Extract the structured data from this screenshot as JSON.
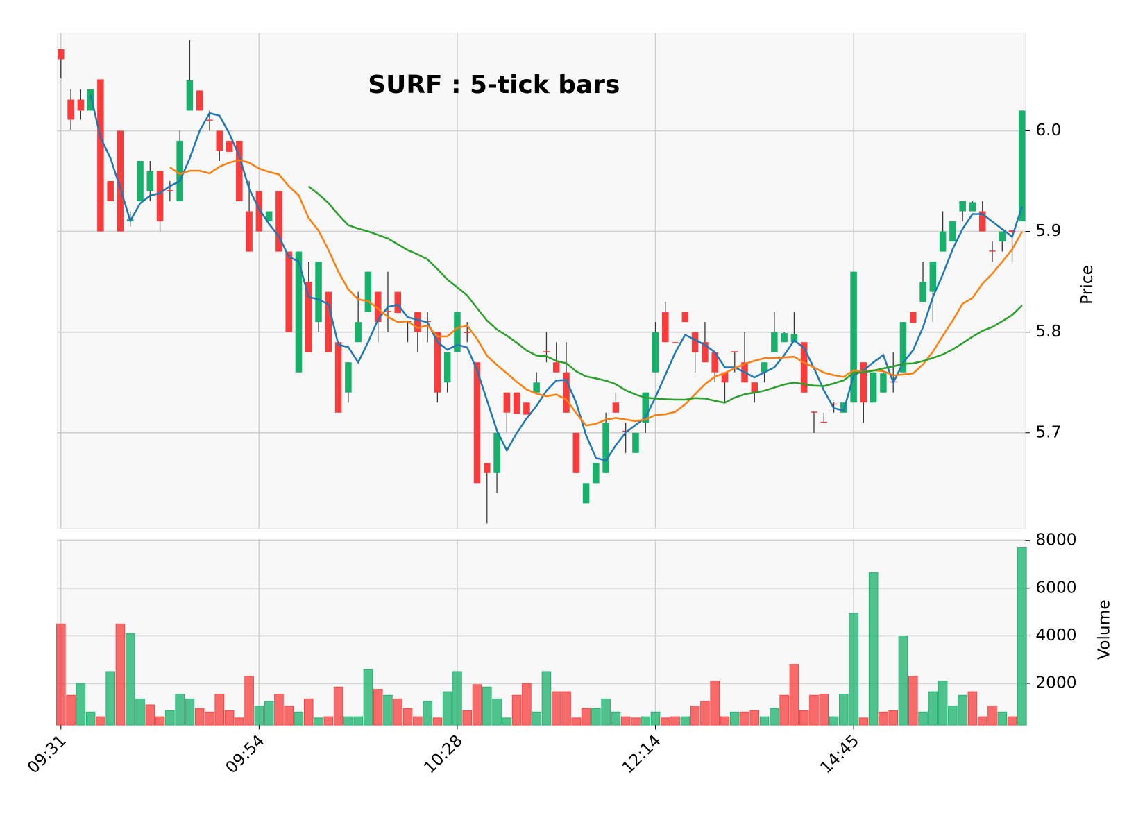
{
  "chart_data": {
    "type": "candlestick",
    "title": "SURF : 5-tick bars",
    "categories": [
      "09:31",
      null,
      null,
      null,
      null,
      null,
      null,
      null,
      null,
      null,
      null,
      null,
      null,
      null,
      null,
      null,
      null,
      null,
      null,
      null,
      "09:54",
      null,
      null,
      null,
      null,
      null,
      null,
      null,
      null,
      null,
      null,
      null,
      null,
      null,
      null,
      null,
      null,
      null,
      null,
      null,
      "10:28",
      null,
      null,
      null,
      null,
      null,
      null,
      null,
      null,
      null,
      null,
      null,
      null,
      null,
      null,
      null,
      null,
      null,
      null,
      null,
      "12:14",
      null,
      null,
      null,
      null,
      null,
      null,
      null,
      null,
      null,
      null,
      null,
      null,
      null,
      null,
      null,
      null,
      null,
      null,
      null,
      "14:45",
      null,
      null,
      null,
      null,
      null,
      null,
      null,
      null,
      null,
      null,
      null,
      null,
      null,
      null,
      null,
      null,
      null
    ],
    "open": [
      6.081,
      6.031,
      6.031,
      6.02,
      6.051,
      5.95,
      6.0,
      5.91,
      5.93,
      5.94,
      5.96,
      5.941,
      5.93,
      6.02,
      6.04,
      6.011,
      6.0,
      5.99,
      5.99,
      5.92,
      5.94,
      5.91,
      5.94,
      5.88,
      5.76,
      5.85,
      5.81,
      5.84,
      5.79,
      5.74,
      5.79,
      5.82,
      5.84,
      5.821,
      5.84,
      5.811,
      5.82,
      5.811,
      5.8,
      5.75,
      5.78,
      5.8,
      5.77,
      5.67,
      5.66,
      5.74,
      5.74,
      5.73,
      5.74,
      5.781,
      5.77,
      5.76,
      5.7,
      5.63,
      5.65,
      5.66,
      5.73,
      5.702,
      5.68,
      5.71,
      5.76,
      5.82,
      5.79,
      5.82,
      5.8,
      5.79,
      5.78,
      5.76,
      5.781,
      5.77,
      5.75,
      5.76,
      5.78,
      5.79,
      5.79,
      5.79,
      5.721,
      5.711,
      5.729,
      5.72,
      5.73,
      5.77,
      5.73,
      5.74,
      5.751,
      5.76,
      5.82,
      5.83,
      5.84,
      5.88,
      5.89,
      5.92,
      5.92,
      5.92,
      5.881,
      5.89,
      5.901,
      5.91
    ],
    "high": [
      6.081,
      6.041,
      6.041,
      6.041,
      6.051,
      5.95,
      6.0,
      5.92,
      5.97,
      5.97,
      5.96,
      5.95,
      6.0,
      6.09,
      6.04,
      6.02,
      6.0,
      5.99,
      5.99,
      5.95,
      5.94,
      5.92,
      5.94,
      5.88,
      5.88,
      5.87,
      5.87,
      5.84,
      5.79,
      5.77,
      5.84,
      5.86,
      5.84,
      5.86,
      5.84,
      5.811,
      5.82,
      5.82,
      5.8,
      5.78,
      5.82,
      5.81,
      5.77,
      5.67,
      5.7,
      5.74,
      5.74,
      5.73,
      5.76,
      5.8,
      5.79,
      5.79,
      5.7,
      5.65,
      5.67,
      5.72,
      5.74,
      5.71,
      5.7,
      5.74,
      5.81,
      5.83,
      5.79,
      5.82,
      5.8,
      5.81,
      5.78,
      5.76,
      5.78,
      5.8,
      5.75,
      5.77,
      5.82,
      5.8,
      5.82,
      5.79,
      5.721,
      5.72,
      5.73,
      5.73,
      5.86,
      5.77,
      5.76,
      5.76,
      5.78,
      5.81,
      5.82,
      5.87,
      5.87,
      5.92,
      5.91,
      5.93,
      5.93,
      5.93,
      5.89,
      5.9,
      5.901,
      6.02
    ],
    "low": [
      6.052,
      6.001,
      6.011,
      6.02,
      5.9,
      5.93,
      5.9,
      5.905,
      5.93,
      5.93,
      5.9,
      5.93,
      5.93,
      6.02,
      6.02,
      6.0,
      5.97,
      5.979,
      5.93,
      5.88,
      5.9,
      5.91,
      5.88,
      5.8,
      5.76,
      5.78,
      5.8,
      5.78,
      5.72,
      5.73,
      5.79,
      5.82,
      5.79,
      5.8,
      5.819,
      5.79,
      5.78,
      5.79,
      5.73,
      5.74,
      5.78,
      5.79,
      5.65,
      5.61,
      5.64,
      5.7,
      5.719,
      5.718,
      5.74,
      5.77,
      5.76,
      5.72,
      5.66,
      5.63,
      5.65,
      5.66,
      5.72,
      5.68,
      5.68,
      5.7,
      5.76,
      5.79,
      5.789,
      5.81,
      5.76,
      5.77,
      5.75,
      5.73,
      5.76,
      5.75,
      5.73,
      5.75,
      5.78,
      5.79,
      5.79,
      5.74,
      5.7,
      5.71,
      5.72,
      5.72,
      5.73,
      5.71,
      5.73,
      5.74,
      5.74,
      5.76,
      5.809,
      5.83,
      5.81,
      5.88,
      5.89,
      5.91,
      5.92,
      5.9,
      5.87,
      5.88,
      5.87,
      5.91
    ],
    "close": [
      6.071,
      6.011,
      6.02,
      6.041,
      5.9,
      5.93,
      5.9,
      5.912,
      5.97,
      5.96,
      5.91,
      5.94,
      5.99,
      6.05,
      6.02,
      6.01,
      5.98,
      5.979,
      5.93,
      5.88,
      5.9,
      5.92,
      5.88,
      5.8,
      5.88,
      5.78,
      5.87,
      5.78,
      5.72,
      5.77,
      5.81,
      5.86,
      5.81,
      5.82,
      5.819,
      5.81,
      5.8,
      5.81,
      5.74,
      5.78,
      5.82,
      5.799,
      5.65,
      5.66,
      5.7,
      5.72,
      5.719,
      5.718,
      5.75,
      5.78,
      5.76,
      5.72,
      5.66,
      5.65,
      5.67,
      5.71,
      5.72,
      5.701,
      5.7,
      5.74,
      5.8,
      5.79,
      5.789,
      5.81,
      5.78,
      5.77,
      5.76,
      5.75,
      5.78,
      5.75,
      5.74,
      5.77,
      5.8,
      5.799,
      5.798,
      5.74,
      5.72,
      5.71,
      5.728,
      5.73,
      5.86,
      5.73,
      5.76,
      5.759,
      5.75,
      5.81,
      5.809,
      5.85,
      5.87,
      5.9,
      5.91,
      5.93,
      5.929,
      5.9,
      5.88,
      5.9,
      5.899,
      6.02
    ],
    "volume": [
      4500,
      1500,
      2000,
      800,
      600,
      2500,
      4500,
      4100,
      1350,
      1100,
      600,
      850,
      1550,
      1350,
      950,
      800,
      1550,
      850,
      550,
      2300,
      1050,
      1250,
      1550,
      1050,
      800,
      1350,
      550,
      600,
      1850,
      600,
      600,
      2600,
      1750,
      1500,
      1350,
      950,
      600,
      1250,
      550,
      1650,
      2500,
      850,
      1950,
      1850,
      1350,
      550,
      1500,
      2000,
      800,
      2500,
      1650,
      1650,
      550,
      950,
      950,
      1350,
      800,
      600,
      550,
      600,
      800,
      550,
      600,
      600,
      1050,
      1250,
      2100,
      600,
      800,
      800,
      850,
      600,
      950,
      1500,
      2800,
      850,
      1500,
      1550,
      600,
      1550,
      4950,
      550,
      6650,
      800,
      850,
      4000,
      2300,
      800,
      1650,
      2100,
      1050,
      1500,
      1650,
      600,
      1050,
      800,
      600,
      7700
    ],
    "mav": [
      4,
      12,
      26
    ],
    "mav_colors": [
      "#1f77b4",
      "#ff7f0e",
      "#2ca02c"
    ],
    "up_color": "#18b06a",
    "down_color": "#f83c3c",
    "ylabel": "Price",
    "ylim": [
      5.605,
      6.097
    ],
    "yticks": [
      5.7,
      5.8,
      5.9,
      {
        "value": 6,
        "label": "6.0"
      }
    ],
    "volume_label": "Volume",
    "volume_ylim": [
      250,
      8050
    ],
    "volume_yticks": [
      2000,
      4000,
      6000,
      8000
    ],
    "grid": true
  }
}
